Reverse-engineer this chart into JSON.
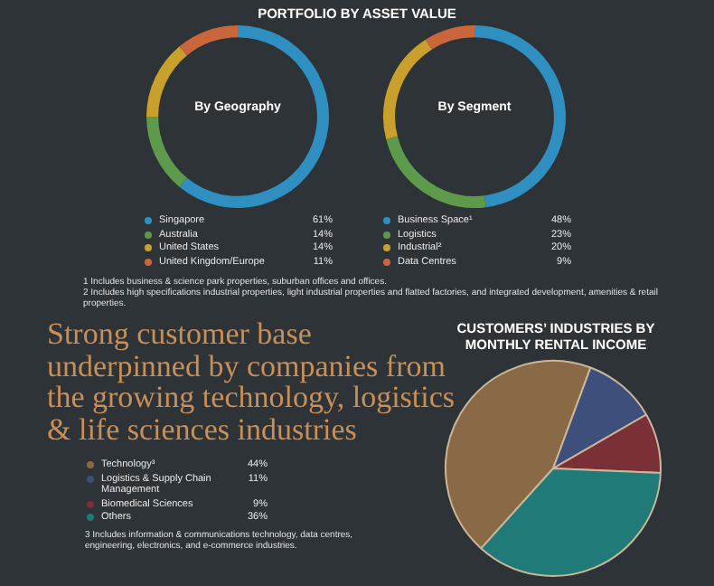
{
  "chart_data": [
    {
      "type": "donut",
      "title": "PORTFOLIO BY ASSET VALUE",
      "subtitle": "By Geography",
      "categories": [
        "Singapore",
        "Australia",
        "United States",
        "United Kingdom/Europe"
      ],
      "values": [
        61,
        14,
        14,
        11
      ],
      "value_labels": [
        "61%",
        "14%",
        "14%",
        "11%"
      ],
      "colors": [
        "#2f8fc1",
        "#5d9a4c",
        "#c9a02c",
        "#c9663b"
      ],
      "legend": "bottom"
    },
    {
      "type": "donut",
      "subtitle": "By Segment",
      "categories": [
        "Business Space¹",
        "Logistics",
        "Industrial²",
        "Data Centres"
      ],
      "values": [
        48,
        23,
        20,
        9
      ],
      "value_labels": [
        "48%",
        "23%",
        "20%",
        "9%"
      ],
      "colors": [
        "#2f8fc1",
        "#5d9a4c",
        "#c9a02c",
        "#c9663b"
      ],
      "legend": "bottom",
      "annotations": [
        "1   Includes business & science park properties, suburban offices and offices.",
        "2   Includes high specifications industrial properties, light industrial properties and flatted factories, and integrated development, amenities & retail properties."
      ]
    },
    {
      "type": "pie",
      "title": "CUSTOMERS’ INDUSTRIES BY MONTHLY RENTAL INCOME",
      "subtitle": "Strong customer base underpinned by companies from the growing technology, logistics & life sciences industries",
      "categories": [
        "Technology³",
        "Logistics & Supply Chain Management",
        "Biomedical Sciences",
        "Others"
      ],
      "values": [
        44,
        11,
        9,
        36
      ],
      "value_labels": [
        "44%",
        "11%",
        "9%",
        "36%"
      ],
      "colors": [
        "#8a6a46",
        "#3e4f7b",
        "#7b2f37",
        "#1f7a78"
      ],
      "legend": "left",
      "annotations": [
        "3   Includes information & communications technology, data centres, engineering, electronics, and e-commerce industries."
      ]
    }
  ]
}
